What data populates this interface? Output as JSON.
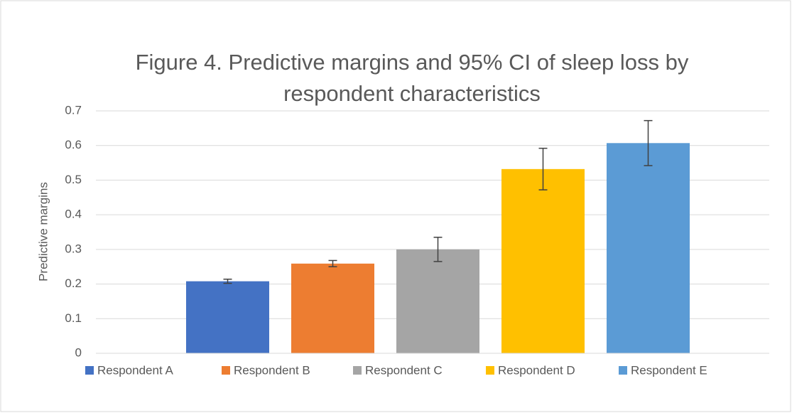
{
  "chart_data": {
    "type": "bar",
    "title": "Figure 4. Predictive margins and 95% CI of sleep loss by respondent characteristics",
    "y_label": "Predictive margins",
    "series": [
      {
        "name": "Respondent A",
        "color": "#4472c4",
        "values": [
          0.208
        ],
        "errors": [
          0.006
        ]
      },
      {
        "name": "Respondent B",
        "color": "#ed7d31",
        "values": [
          0.259
        ],
        "errors": [
          0.009
        ]
      },
      {
        "name": "Respondent C",
        "color": "#a5a5a5",
        "values": [
          0.3
        ],
        "errors": [
          0.035
        ]
      },
      {
        "name": "Respondent D",
        "color": "#ffc000",
        "values": [
          0.532
        ],
        "errors": [
          0.06
        ]
      },
      {
        "name": "Respondent E",
        "color": "#5b9bd5",
        "values": [
          0.607
        ],
        "errors": [
          0.065
        ]
      }
    ],
    "ylim": [
      0,
      0.7
    ],
    "yticks": [
      0,
      0.1,
      0.2,
      0.3,
      0.4,
      0.5,
      0.6,
      0.7
    ],
    "grid": true,
    "legend": "bottom"
  }
}
